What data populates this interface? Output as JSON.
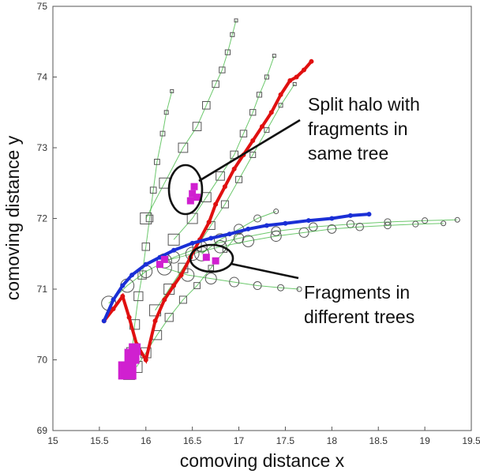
{
  "chart_data": {
    "type": "scatter",
    "title": "",
    "xlabel": "comoving distance x",
    "ylabel": "comoving distance y",
    "xlim": [
      15,
      19.5
    ],
    "ylim": [
      69,
      75
    ],
    "xticks": [
      "15",
      "15.5",
      "16",
      "16.5",
      "17",
      "17.5",
      "18",
      "18.5",
      "19",
      "19.5"
    ],
    "yticks": [
      "69",
      "70",
      "71",
      "72",
      "73",
      "74",
      "75"
    ],
    "grid": false,
    "legend": "none",
    "colors": {
      "red_track": "#e01010",
      "blue_track": "#1a2fd6",
      "fragment": "#d020d0",
      "marker": "#555555",
      "link": "#2db02d"
    },
    "series": [
      {
        "marker": "circle",
        "color": "#e01010",
        "x": [
          15.55,
          15.65,
          15.75,
          15.82,
          15.9,
          16.0,
          16.1,
          16.2,
          16.3,
          16.38,
          16.48,
          16.58,
          16.68,
          16.75,
          16.85,
          16.95,
          17.05,
          17.15,
          17.25,
          17.35,
          17.45,
          17.55,
          17.62,
          17.7,
          17.78
        ],
        "y": [
          70.55,
          70.72,
          70.9,
          70.6,
          70.22,
          70.0,
          70.55,
          70.85,
          71.05,
          71.2,
          71.45,
          71.7,
          71.95,
          72.2,
          72.45,
          72.7,
          72.9,
          73.1,
          73.3,
          73.5,
          73.75,
          73.95,
          74.0,
          74.1,
          74.22
        ]
      },
      {
        "marker": "circle",
        "color": "#1a2fd6",
        "x": [
          15.55,
          15.65,
          15.75,
          15.85,
          16.0,
          16.15,
          16.3,
          16.5,
          16.7,
          16.9,
          17.1,
          17.3,
          17.5,
          17.75,
          18.0,
          18.2,
          18.4
        ],
        "y": [
          70.55,
          70.85,
          71.05,
          71.2,
          71.35,
          71.45,
          71.55,
          71.65,
          71.72,
          71.78,
          71.85,
          71.9,
          71.93,
          71.97,
          72.0,
          72.04,
          72.06
        ]
      },
      {
        "marker": "square",
        "color": "#555555",
        "x": [
          15.82,
          15.85,
          15.88,
          15.92,
          15.96,
          16.0,
          16.04,
          16.08,
          16.12,
          16.18,
          16.22,
          16.28
        ],
        "y": [
          69.8,
          70.1,
          70.5,
          70.9,
          71.2,
          71.6,
          72.0,
          72.4,
          72.8,
          73.2,
          73.5,
          73.8
        ]
      },
      {
        "marker": "square",
        "color": "#555555",
        "x": [
          16.0,
          16.2,
          16.4,
          16.55,
          16.65,
          16.75,
          16.82,
          16.88,
          16.93,
          16.97
        ],
        "y": [
          72.0,
          72.5,
          73.0,
          73.3,
          73.6,
          73.9,
          74.1,
          74.35,
          74.6,
          74.8
        ]
      },
      {
        "marker": "square",
        "color": "#555555",
        "x": [
          16.3,
          16.5,
          16.65,
          16.8,
          16.95,
          17.05,
          17.15,
          17.22,
          17.3,
          17.38
        ],
        "y": [
          71.7,
          72.0,
          72.3,
          72.6,
          72.9,
          73.2,
          73.5,
          73.75,
          74.0,
          74.3
        ]
      },
      {
        "marker": "square",
        "color": "#555555",
        "x": [
          16.1,
          16.25,
          16.4,
          16.55,
          16.7,
          16.85,
          17.0,
          17.15,
          17.3,
          17.45,
          17.6
        ],
        "y": [
          70.7,
          71.0,
          71.3,
          71.6,
          71.9,
          72.2,
          72.55,
          72.9,
          73.25,
          73.6,
          73.9
        ]
      },
      {
        "marker": "square",
        "color": "#555555",
        "x": [
          15.9,
          16.0,
          16.12,
          16.25,
          16.4,
          16.55,
          16.7,
          16.85,
          17.0
        ],
        "y": [
          69.9,
          70.1,
          70.35,
          70.6,
          70.85,
          71.05,
          71.3,
          71.55,
          71.8
        ]
      },
      {
        "marker": "circle",
        "color": "#555555",
        "x": [
          15.6,
          15.8,
          16.0,
          16.3,
          16.6,
          17.0,
          17.4,
          17.8,
          18.2,
          18.6,
          19.0,
          19.35
        ],
        "y": [
          70.8,
          71.05,
          71.25,
          71.45,
          71.6,
          71.72,
          71.82,
          71.88,
          71.92,
          71.95,
          71.97,
          71.98
        ]
      },
      {
        "marker": "circle",
        "color": "#555555",
        "x": [
          16.2,
          16.5,
          16.8,
          17.1,
          17.4,
          17.7,
          18.0,
          18.3,
          18.6,
          18.9,
          19.2
        ],
        "y": [
          71.4,
          71.5,
          71.6,
          71.68,
          71.75,
          71.8,
          71.85,
          71.88,
          71.9,
          71.92,
          71.93
        ]
      },
      {
        "marker": "circle",
        "color": "#555555",
        "x": [
          16.2,
          16.45,
          16.7,
          16.95,
          17.2,
          17.45,
          17.65
        ],
        "y": [
          71.3,
          71.2,
          71.15,
          71.1,
          71.05,
          71.02,
          71.0
        ]
      },
      {
        "marker": "circle",
        "color": "#555555",
        "x": [
          16.6,
          16.8,
          17.0,
          17.2,
          17.4
        ],
        "y": [
          71.5,
          71.7,
          71.85,
          72.0,
          72.1
        ]
      },
      {
        "marker": "square",
        "color": "#d020d0",
        "x": [
          15.8,
          15.85,
          15.88,
          16.15,
          16.2,
          16.48,
          16.5,
          16.52,
          16.55,
          16.65,
          16.75
        ],
        "y": [
          69.85,
          70.05,
          70.15,
          71.35,
          71.42,
          72.25,
          72.35,
          72.45,
          72.3,
          71.45,
          71.4
        ]
      }
    ],
    "annotations": [
      {
        "text": "Split halo with fragments in same tree",
        "lines": [
          "Split halo with",
          "fragments in",
          "same tree"
        ]
      },
      {
        "text": "Fragments in different trees",
        "lines": [
          "Fragments in",
          "different trees"
        ]
      }
    ]
  }
}
